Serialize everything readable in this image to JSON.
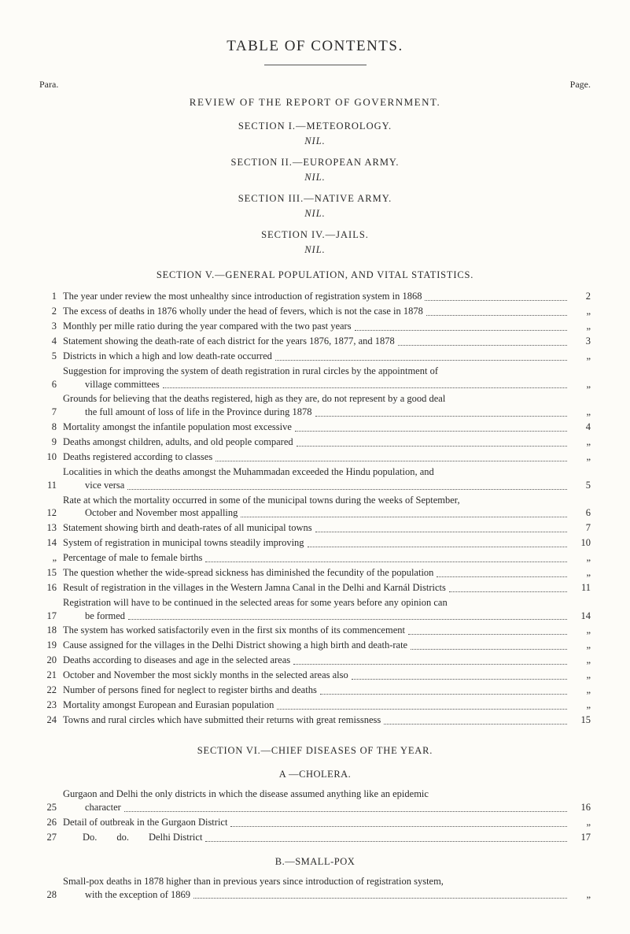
{
  "labels": {
    "para": "Para.",
    "page": "Page."
  },
  "title": "TABLE OF CONTENTS.",
  "review": "REVIEW OF THE REPORT OF GOVERNMENT.",
  "nil": "NIL.",
  "sections_top": [
    "SECTION I.—METEOROLOGY.",
    "SECTION II.—EUROPEAN ARMY.",
    "SECTION III.—NATIVE ARMY.",
    "SECTION IV.—JAILS."
  ],
  "section_v": "SECTION V.—GENERAL POPULATION, AND VITAL STATISTICS.",
  "entries_v": [
    {
      "n": "1",
      "t": [
        "The year under review the most unhealthy since introduction of registration system in 1868"
      ],
      "p": "2"
    },
    {
      "n": "2",
      "t": [
        "The excess of deaths in 1876 wholly under the head of fevers, which is not the case in 1878"
      ],
      "p": "„"
    },
    {
      "n": "3",
      "t": [
        "Monthly per mille ratio during the year compared with the two past years"
      ],
      "p": "„"
    },
    {
      "n": "4",
      "t": [
        "Statement showing the death-rate of each district for the years 1876, 1877, and 1878"
      ],
      "p": "3"
    },
    {
      "n": "5",
      "t": [
        "Districts in which a high and low death-rate occurred"
      ],
      "p": "„"
    },
    {
      "n": "6",
      "t": [
        "Suggestion for improving the system of death registration in rural circles by the appointment of",
        "village committees"
      ],
      "p": "„"
    },
    {
      "n": "7",
      "t": [
        "Grounds for believing that the deaths registered, high as they are, do not represent by a good deal",
        "the full amount of loss of life in the Province during 1878"
      ],
      "p": "„"
    },
    {
      "n": "8",
      "t": [
        "Mortality amongst the infantile population most excessive"
      ],
      "p": "4"
    },
    {
      "n": "9",
      "t": [
        "Deaths amongst children, adults, and old people compared"
      ],
      "p": "„"
    },
    {
      "n": "10",
      "t": [
        "Deaths registered according to classes"
      ],
      "p": "„"
    },
    {
      "n": "11",
      "t": [
        "Localities in which the deaths amongst the Muhammadan exceeded the Hindu population, and",
        "vice versa"
      ],
      "p": "5"
    },
    {
      "n": "12",
      "t": [
        "Rate at which the mortality occurred in some of the municipal towns during the weeks of September,",
        "October and November most appalling"
      ],
      "p": "6"
    },
    {
      "n": "13",
      "t": [
        "Statement showing birth and death-rates of all municipal towns"
      ],
      "p": "7"
    },
    {
      "n": "14",
      "t": [
        "System of registration in municipal towns steadily improving"
      ],
      "p": "10"
    },
    {
      "n": "„",
      "t": [
        "Percentage of male to female births"
      ],
      "p": "„"
    },
    {
      "n": "15",
      "t": [
        "The question whether the wide-spread sickness has diminished the fecundity of the population"
      ],
      "p": "„"
    },
    {
      "n": "16",
      "t": [
        "Result of registration in the villages in the Western Jamna Canal in the Delhi and Karnál Districts"
      ],
      "p": "11"
    },
    {
      "n": "17",
      "t": [
        "Registration will have to be continued in the selected areas for some years before any opinion can",
        "be formed"
      ],
      "p": "14"
    },
    {
      "n": "18",
      "t": [
        "The system has worked satisfactorily even in the first six months of its commencement"
      ],
      "p": "„"
    },
    {
      "n": "19",
      "t": [
        "Cause assigned for the villages in the Delhi District showing a high birth and death-rate"
      ],
      "p": "„"
    },
    {
      "n": "20",
      "t": [
        "Deaths according to diseases and age in the selected areas"
      ],
      "p": "„"
    },
    {
      "n": "21",
      "t": [
        "October and November the most sickly months in the selected areas also"
      ],
      "p": "„"
    },
    {
      "n": "22",
      "t": [
        "Number of persons fined for neglect to register births and deaths"
      ],
      "p": "„"
    },
    {
      "n": "23",
      "t": [
        "Mortality amongst European and Eurasian population"
      ],
      "p": "„"
    },
    {
      "n": "24",
      "t": [
        "Towns and rural circles which have submitted their returns with great remissness"
      ],
      "p": "15"
    }
  ],
  "section_vi": "SECTION VI.—CHIEF DISEASES OF THE YEAR.",
  "block_a": "A —CHOLERA.",
  "entries_a": [
    {
      "n": "25",
      "t": [
        "Gurgaon and Delhi the only districts in which the disease assumed anything like an epidemic",
        "character"
      ],
      "p": "16"
    },
    {
      "n": "26",
      "t": [
        "Detail of outbreak in the Gurgaon District"
      ],
      "p": "„"
    },
    {
      "n": "27",
      "t": [
        "  Do.  do.  Delhi District"
      ],
      "p": "17"
    }
  ],
  "block_b": "B.—SMALL-POX",
  "entries_b": [
    {
      "n": "28",
      "t": [
        "Small-pox deaths in 1878 higher than in previous years since introduction of registration system,",
        "with the exception of 1869"
      ],
      "p": "„"
    }
  ]
}
